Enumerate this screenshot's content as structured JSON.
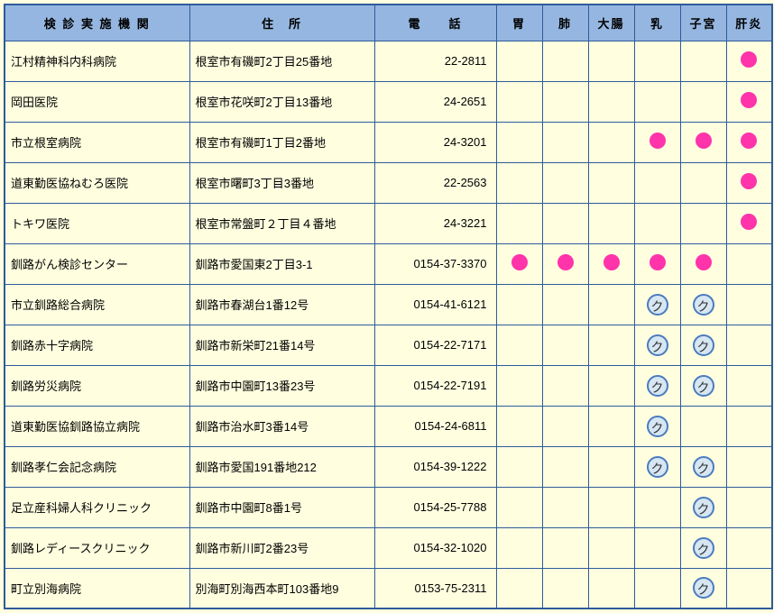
{
  "headers": {
    "inst": "検 診 実 施 機 関",
    "addr": "住　所",
    "tel": "電　　話",
    "marks": [
      "胃",
      "肺",
      "大腸",
      "乳",
      "子宮",
      "肝炎"
    ]
  },
  "rows": [
    {
      "inst": "江村精神科内科病院",
      "addr": "根室市有磯町2丁目25番地",
      "tel": "22-2811",
      "m": [
        "",
        "",
        "",
        "",
        "",
        "dot"
      ]
    },
    {
      "inst": "岡田医院",
      "addr": "根室市花咲町2丁目13番地",
      "tel": "24-2651",
      "m": [
        "",
        "",
        "",
        "",
        "",
        "dot"
      ]
    },
    {
      "inst": "市立根室病院",
      "addr": "根室市有磯町1丁目2番地",
      "tel": "24-3201",
      "m": [
        "",
        "",
        "",
        "dot",
        "dot",
        "dot"
      ]
    },
    {
      "inst": "道東勤医協ねむろ医院",
      "addr": "根室市曙町3丁目3番地",
      "tel": "22-2563",
      "m": [
        "",
        "",
        "",
        "",
        "",
        "dot"
      ]
    },
    {
      "inst": "トキワ医院",
      "addr": "根室市常盤町２丁目４番地",
      "tel": "24-3221",
      "m": [
        "",
        "",
        "",
        "",
        "",
        "dot"
      ]
    },
    {
      "inst": "釧路がん検診センター",
      "addr": "釧路市愛国東2丁目3-1",
      "tel": "0154-37-3370",
      "m": [
        "dot",
        "dot",
        "dot",
        "dot",
        "dot",
        ""
      ]
    },
    {
      "inst": "市立釧路総合病院",
      "addr": "釧路市春湖台1番12号",
      "tel": "0154-41-6121",
      "m": [
        "",
        "",
        "",
        "ku",
        "ku",
        ""
      ]
    },
    {
      "inst": "釧路赤十字病院",
      "addr": "釧路市新栄町21番14号",
      "tel": "0154-22-7171",
      "m": [
        "",
        "",
        "",
        "ku",
        "ku",
        ""
      ]
    },
    {
      "inst": "釧路労災病院",
      "addr": "釧路市中園町13番23号",
      "tel": "0154-22-7191",
      "m": [
        "",
        "",
        "",
        "ku",
        "ku",
        ""
      ]
    },
    {
      "inst": "道東勤医協釧路協立病院",
      "addr": "釧路市治水町3番14号",
      "tel": "0154-24-6811",
      "m": [
        "",
        "",
        "",
        "ku",
        "",
        ""
      ]
    },
    {
      "inst": "釧路孝仁会記念病院",
      "addr": "釧路市愛国191番地212",
      "tel": "0154-39-1222",
      "m": [
        "",
        "",
        "",
        "ku",
        "ku",
        ""
      ]
    },
    {
      "inst": "足立産科婦人科クリニック",
      "addr": "釧路市中園町8番1号",
      "tel": "0154-25-7788",
      "m": [
        "",
        "",
        "",
        "",
        "ku",
        ""
      ]
    },
    {
      "inst": "釧路レディースクリニック",
      "addr": "釧路市新川町2番23号",
      "tel": "0154-32-1020",
      "m": [
        "",
        "",
        "",
        "",
        "ku",
        ""
      ]
    },
    {
      "inst": "町立別海病院",
      "addr": "別海町別海西本町103番地9",
      "tel": "0153-75-2311",
      "m": [
        "",
        "",
        "",
        "",
        "ku",
        ""
      ]
    }
  ],
  "ku_label": "ク"
}
